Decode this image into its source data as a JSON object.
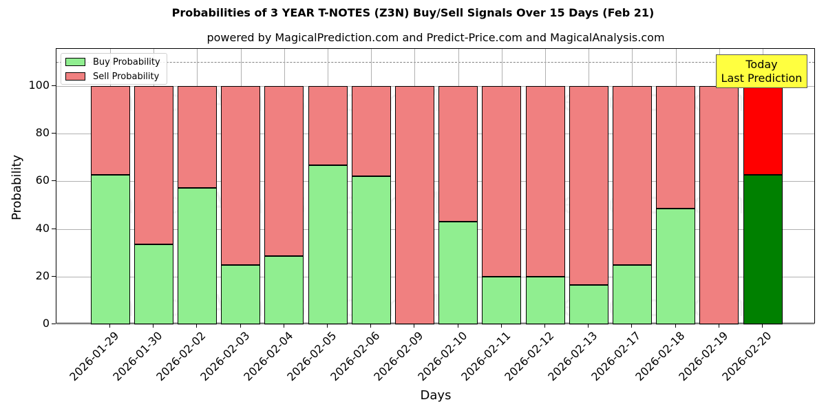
{
  "chart_data": {
    "type": "bar",
    "stacked": true,
    "title": "Probabilities of 3 YEAR T-NOTES (Z3N) Buy/Sell Signals Over 15 Days (Feb 21)",
    "subtitle": "powered by MagicalPrediction.com and Predict-Price.com and MagicalAnalysis.com",
    "xlabel": "Days",
    "ylabel": "Probability",
    "ylim": [
      0,
      115
    ],
    "yticks": [
      0,
      20,
      40,
      60,
      80,
      100
    ],
    "grid": true,
    "legend_position": "upper left",
    "reference_line": 110,
    "categories": [
      "2026-01-29",
      "2026-01-30",
      "2026-02-02",
      "2026-02-03",
      "2026-02-04",
      "2026-02-05",
      "2026-02-06",
      "2026-02-09",
      "2026-02-10",
      "2026-02-11",
      "2026-02-12",
      "2026-02-13",
      "2026-02-17",
      "2026-02-18",
      "2026-02-19",
      "2026-02-20"
    ],
    "series": [
      {
        "name": "Buy Probability",
        "color": "#90ee90",
        "values": [
          62.7,
          33.5,
          57.2,
          24.9,
          28.6,
          66.8,
          62.1,
          0,
          43.1,
          19.9,
          19.9,
          16.5,
          24.9,
          48.6,
          0,
          62.7
        ]
      },
      {
        "name": "Sell Probability",
        "color": "#f08080",
        "values": [
          37.3,
          66.5,
          42.8,
          75.1,
          71.4,
          33.2,
          37.9,
          100,
          56.9,
          80.1,
          80.1,
          83.5,
          75.1,
          51.4,
          100,
          37.3
        ]
      }
    ],
    "highlight": {
      "index": 15,
      "buy_color": "#008000",
      "sell_color": "#ff0000"
    },
    "annotation": {
      "line1": "Today",
      "line2": "Last Prediction",
      "background": "#ffff40"
    },
    "watermarks": [
      "MagicalAnalysis.com",
      "MagicalPrediction.com"
    ]
  },
  "legend": {
    "buy_label": "Buy Probability",
    "sell_label": "Sell Probability"
  }
}
